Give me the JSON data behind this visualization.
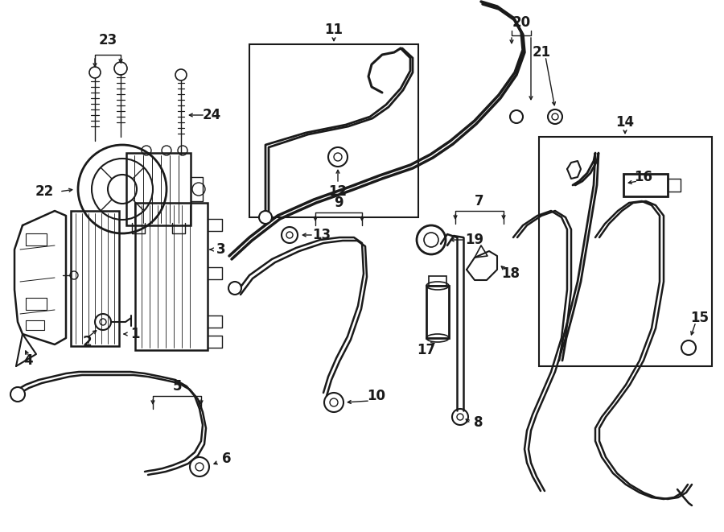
{
  "bg_color": "#ffffff",
  "line_color": "#1a1a1a",
  "fig_width": 9.0,
  "fig_height": 6.61,
  "font_size": 12,
  "font_size_sm": 10
}
